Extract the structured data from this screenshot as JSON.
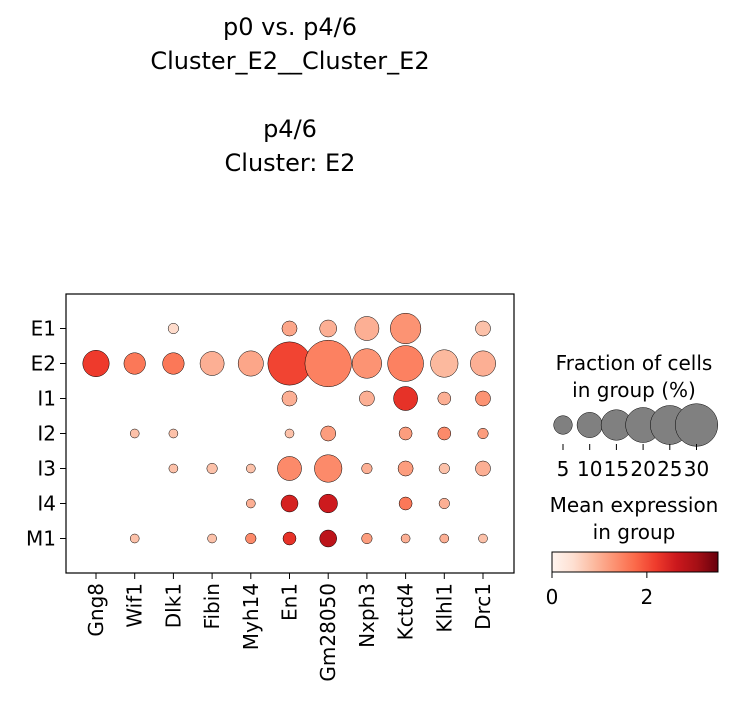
{
  "chart_data": {
    "type": "dotplot",
    "title_lines": [
      "p0 vs. p4/6",
      "Cluster_E2__Cluster_E2",
      "",
      "p4/6",
      "Cluster: E2"
    ],
    "genes": [
      "Gng8",
      "Wif1",
      "Dlk1",
      "Fibin",
      "Myh14",
      "En1",
      "Gm28050",
      "Nxph3",
      "Kctd4",
      "Klhl1",
      "Drc1"
    ],
    "groups": [
      "E1",
      "E2",
      "I1",
      "I2",
      "I3",
      "I4",
      "M1"
    ],
    "fraction_pct": [
      [
        0,
        0,
        1,
        0,
        0,
        3,
        4,
        9,
        15,
        0,
        3
      ],
      [
        11,
        7,
        7,
        9,
        10,
        31,
        36,
        14,
        21,
        12,
        10
      ],
      [
        0,
        0,
        0,
        0,
        0,
        3,
        0,
        3,
        9,
        2,
        3
      ],
      [
        0,
        0.5,
        0.5,
        0,
        0,
        0.5,
        3,
        0,
        2,
        2,
        1
      ],
      [
        0,
        0,
        0.5,
        1,
        0.5,
        9,
        12,
        1,
        3,
        1,
        3
      ],
      [
        0,
        0,
        0,
        0,
        0.5,
        4,
        5,
        0,
        2,
        1,
        0
      ],
      [
        0,
        0.5,
        0,
        0.5,
        1,
        2,
        4,
        1,
        0.5,
        0.5,
        0.5
      ]
    ],
    "mean_expression": [
      [
        0,
        0,
        0.5,
        0,
        0,
        1.1,
        1.0,
        1.0,
        1.3,
        0,
        0.8
      ],
      [
        2.2,
        1.6,
        1.6,
        1.0,
        1.1,
        2.1,
        1.5,
        1.3,
        1.5,
        0.9,
        1.0
      ],
      [
        0,
        0,
        0,
        0,
        0,
        1.0,
        0,
        1.0,
        2.3,
        1.0,
        1.3
      ],
      [
        0,
        0.8,
        0.8,
        0,
        0,
        0.8,
        1.2,
        0,
        1.2,
        1.4,
        1.2
      ],
      [
        0,
        0,
        0.8,
        0.8,
        0.8,
        1.4,
        1.4,
        1.0,
        1.2,
        0.8,
        1.0
      ],
      [
        0,
        0,
        0,
        0,
        1.0,
        2.5,
        2.6,
        0,
        1.6,
        1.0,
        0
      ],
      [
        0,
        0.8,
        0,
        0.8,
        1.4,
        2.3,
        2.8,
        1.2,
        1.0,
        1.0,
        0.8
      ]
    ],
    "size_legend": {
      "title_lines": [
        "Fraction of cells",
        "in group (%)"
      ],
      "values": [
        5,
        10,
        15,
        20,
        25,
        30
      ],
      "tick_labels": [
        "5",
        "10",
        "15",
        "20",
        "25",
        "30"
      ],
      "dot_color": "#808080"
    },
    "color_legend": {
      "title_lines": [
        "Mean expression",
        "in group"
      ],
      "range": [
        0,
        3.5
      ],
      "ticks": [
        0,
        2
      ],
      "tick_labels": [
        "0",
        "2"
      ],
      "colormap": "Reds"
    },
    "grid": false,
    "legend_placement": "right"
  }
}
